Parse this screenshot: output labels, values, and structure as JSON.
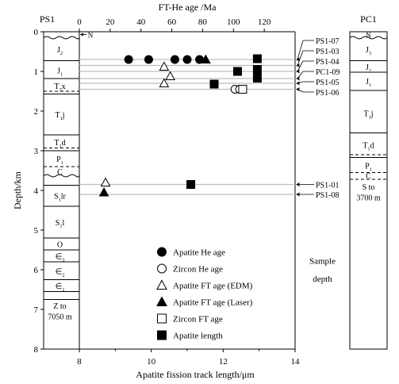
{
  "chart_data": {
    "type": "scatter",
    "top_axis": {
      "label": "FT-He age /Ma",
      "range": [
        0,
        140
      ],
      "ticks": [
        0,
        20,
        40,
        60,
        80,
        100,
        120
      ]
    },
    "bottom_axis": {
      "label": "Apatite fission track length/μm",
      "range": [
        8,
        14
      ],
      "ticks": [
        8,
        10,
        12,
        14
      ]
    },
    "left_axis": {
      "label": "Depth/km",
      "range": [
        0,
        8
      ],
      "ticks": [
        0,
        1,
        2,
        3,
        4,
        5,
        6,
        7,
        8
      ],
      "inverted": true
    },
    "grid": false,
    "legend_position": "lower-center",
    "legend": [
      {
        "label": "Apatite He age",
        "marker": "filled-circle"
      },
      {
        "label": "Zircon He age",
        "marker": "open-circle"
      },
      {
        "label": "Apatite FT age (EDM)",
        "marker": "open-triangle"
      },
      {
        "label": "Apatite FT age (Laser)",
        "marker": "filled-triangle"
      },
      {
        "label": "Zircon FT age",
        "marker": "open-square"
      },
      {
        "label": "Apatite length",
        "marker": "filled-square"
      }
    ],
    "series": [
      {
        "name": "Apatite He age",
        "axis": "age_Ma",
        "points": [
          [
            32,
            0.7
          ],
          [
            45,
            0.7
          ],
          [
            62,
            0.7
          ],
          [
            70,
            0.7
          ],
          [
            78,
            0.7
          ]
        ]
      },
      {
        "name": "Zircon He age",
        "axis": "age_Ma",
        "points": [
          [
            101,
            1.45
          ],
          [
            104,
            1.45
          ]
        ]
      },
      {
        "name": "Apatite FT age (EDM)",
        "axis": "age_Ma",
        "points": [
          [
            55,
            0.88
          ],
          [
            59,
            1.12
          ],
          [
            55,
            1.3
          ],
          [
            17,
            3.8
          ]
        ]
      },
      {
        "name": "Apatite FT age (Laser)",
        "axis": "age_Ma",
        "points": [
          [
            82,
            0.7
          ],
          [
            16,
            4.05
          ]
        ]
      },
      {
        "name": "Zircon FT age",
        "axis": "age_Ma",
        "points": [
          [
            106,
            1.45
          ]
        ]
      },
      {
        "name": "Apatite length",
        "axis": "length_um",
        "points": [
          [
            12.95,
            0.68
          ],
          [
            12.4,
            1.0
          ],
          [
            12.95,
            0.95
          ],
          [
            12.95,
            1.17
          ],
          [
            11.75,
            1.32
          ],
          [
            11.1,
            3.85
          ]
        ]
      }
    ],
    "sample_lines": [
      {
        "depth": 0.7,
        "label": "PS1-07"
      },
      {
        "depth": 0.85,
        "label": "PS1-03"
      },
      {
        "depth": 1.0,
        "label": "PS1-04"
      },
      {
        "depth": 1.18,
        "label": "PC1-09"
      },
      {
        "depth": 1.3,
        "label": "PS1-05"
      },
      {
        "depth": 1.45,
        "label": "PS1-06"
      },
      {
        "depth": 3.85,
        "label": "PS1-01"
      },
      {
        "depth": 4.1,
        "label": "PS1-08"
      }
    ],
    "sample_depth_label": [
      "Sample",
      "depth"
    ],
    "ps1_column": {
      "title": "PS1",
      "top_marker": "N",
      "boundaries": [
        {
          "depth": 0.15,
          "style": "wavy"
        },
        {
          "depth": 0.73,
          "style": "solid"
        },
        {
          "depth": 1.18,
          "style": "solid"
        },
        {
          "depth": 1.5,
          "style": "dashed"
        },
        {
          "depth": 1.57,
          "style": "solid"
        },
        {
          "depth": 2.6,
          "style": "solid"
        },
        {
          "depth": 2.93,
          "style": "dashed"
        },
        {
          "depth": 3.0,
          "style": "solid"
        },
        {
          "depth": 3.4,
          "style": "dashed"
        },
        {
          "depth": 3.63,
          "style": "wavy"
        },
        {
          "depth": 3.87,
          "style": "solid"
        },
        {
          "depth": 4.4,
          "style": "solid"
        },
        {
          "depth": 5.2,
          "style": "solid"
        },
        {
          "depth": 5.5,
          "style": "solid"
        },
        {
          "depth": 5.8,
          "style": "solid"
        },
        {
          "depth": 6.25,
          "style": "solid"
        },
        {
          "depth": 6.55,
          "style": "solid"
        },
        {
          "depth": 6.75,
          "style": "solid"
        }
      ],
      "labels": [
        {
          "depth": 0.44,
          "text": "J",
          "sub": "2"
        },
        {
          "depth": 0.97,
          "text": "J",
          "sub": "1"
        },
        {
          "depth": 1.36,
          "text": "T",
          "sub": "3",
          "suffix": "x"
        },
        {
          "depth": 2.08,
          "text": "T",
          "sub": "1",
          "suffix": "j"
        },
        {
          "depth": 2.78,
          "text": "T",
          "sub": "1",
          "suffix": "d"
        },
        {
          "depth": 3.2,
          "text": "P",
          "sub": "1"
        },
        {
          "depth": 3.52,
          "text": "C"
        },
        {
          "depth": 4.13,
          "text": "S",
          "sub": "1",
          "suffix": "lr"
        },
        {
          "depth": 4.8,
          "text": "S",
          "sub": "1",
          "suffix": "l"
        },
        {
          "depth": 5.35,
          "text": "O"
        },
        {
          "depth": 5.65,
          "text": "∈",
          "sub": "3"
        },
        {
          "depth": 6.03,
          "text": "∈",
          "sub": "2"
        },
        {
          "depth": 6.4,
          "text": "∈",
          "sub": "1"
        }
      ],
      "bottom_note": [
        "Z   to",
        "7050 m"
      ]
    },
    "pc1_column": {
      "title": "PC1",
      "top_marker": "N",
      "boundaries": [
        {
          "depth": 0.15,
          "style": "wavy"
        },
        {
          "depth": 0.73,
          "style": "solid"
        },
        {
          "depth": 1.02,
          "style": "solid"
        },
        {
          "depth": 1.48,
          "style": "solid"
        },
        {
          "depth": 2.55,
          "style": "solid"
        },
        {
          "depth": 3.1,
          "style": "dashed"
        },
        {
          "depth": 3.17,
          "style": "solid"
        },
        {
          "depth": 3.55,
          "style": "dashed"
        },
        {
          "depth": 3.72,
          "style": "dashed"
        }
      ],
      "labels": [
        {
          "depth": 0.44,
          "text": "J",
          "sub": "3"
        },
        {
          "depth": 0.88,
          "text": "J",
          "sub": "2"
        },
        {
          "depth": 1.24,
          "text": "J",
          "sub": "1"
        },
        {
          "depth": 2.05,
          "text": "T",
          "sub": "1",
          "suffix": "j"
        },
        {
          "depth": 2.85,
          "text": "T",
          "sub": "1",
          "suffix": "d"
        },
        {
          "depth": 3.37,
          "text": "P",
          "sub": "1"
        },
        {
          "depth": 3.62,
          "text": "C"
        }
      ],
      "bottom_note": [
        "S   to",
        "3700 m"
      ]
    }
  }
}
